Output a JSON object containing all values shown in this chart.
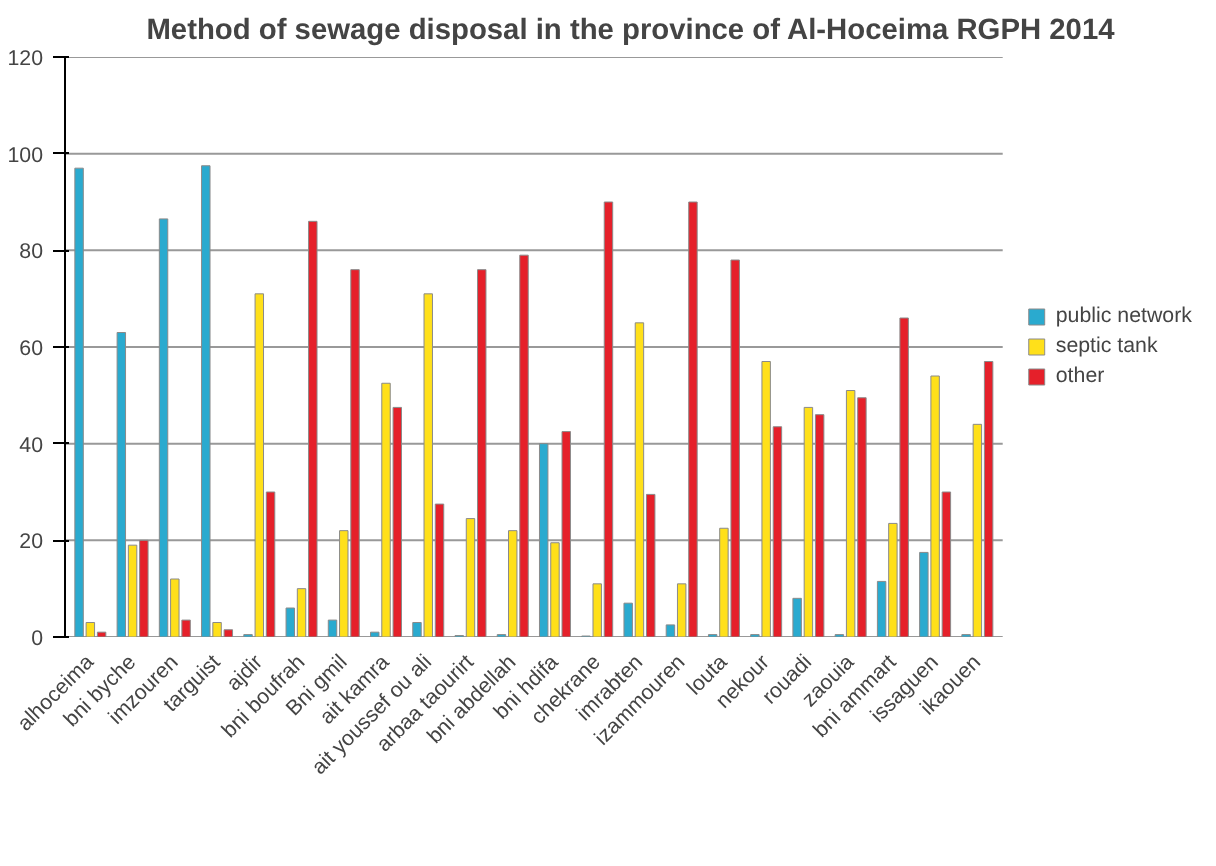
{
  "chart_data": {
    "type": "bar",
    "title": "Method of sewage disposal in the province of Al-Hoceima RGPH 2014",
    "categories": [
      "alhoceima",
      "bni byche",
      "imzouren",
      "targuist",
      "ajdir",
      "bni boufrah",
      "Bni gmil",
      "ait kamra",
      "ait youssef ou ali",
      "arbaa taourirt",
      "bni abdellah",
      "bni hdifa",
      "chekrane",
      "imrabten",
      "izammouren",
      "louta",
      "nekour",
      "rouadi",
      "zaouia",
      "bni ammart",
      "issaguen",
      "ikaouen"
    ],
    "series": [
      {
        "name": "public network",
        "color": "#2aaacf",
        "values": [
          97,
          63,
          86.5,
          97.5,
          0.5,
          6,
          3.5,
          1,
          3,
          0.3,
          0.5,
          40,
          0.2,
          7,
          2.5,
          0.5,
          0.5,
          8,
          0.5,
          11.5,
          17.5,
          0.5
        ]
      },
      {
        "name": "septic tank",
        "color": "#ffe01a",
        "values": [
          3,
          19,
          12,
          3,
          71,
          10,
          22,
          52.5,
          71,
          24.5,
          22,
          19.5,
          11,
          65,
          11,
          22.5,
          57,
          47.5,
          51,
          23.5,
          54,
          44
        ]
      },
      {
        "name": "other",
        "color": "#e5202a",
        "values": [
          1,
          20,
          3.5,
          1.5,
          30,
          86,
          76,
          47.5,
          27.5,
          76,
          79,
          42.5,
          90,
          29.5,
          90,
          78,
          43.5,
          46,
          49.5,
          66,
          30,
          57
        ]
      }
    ],
    "ylim": [
      0,
      120
    ],
    "yticks": [
      0,
      20,
      40,
      60,
      80,
      100,
      120
    ],
    "grid": "y",
    "legend": "right"
  }
}
